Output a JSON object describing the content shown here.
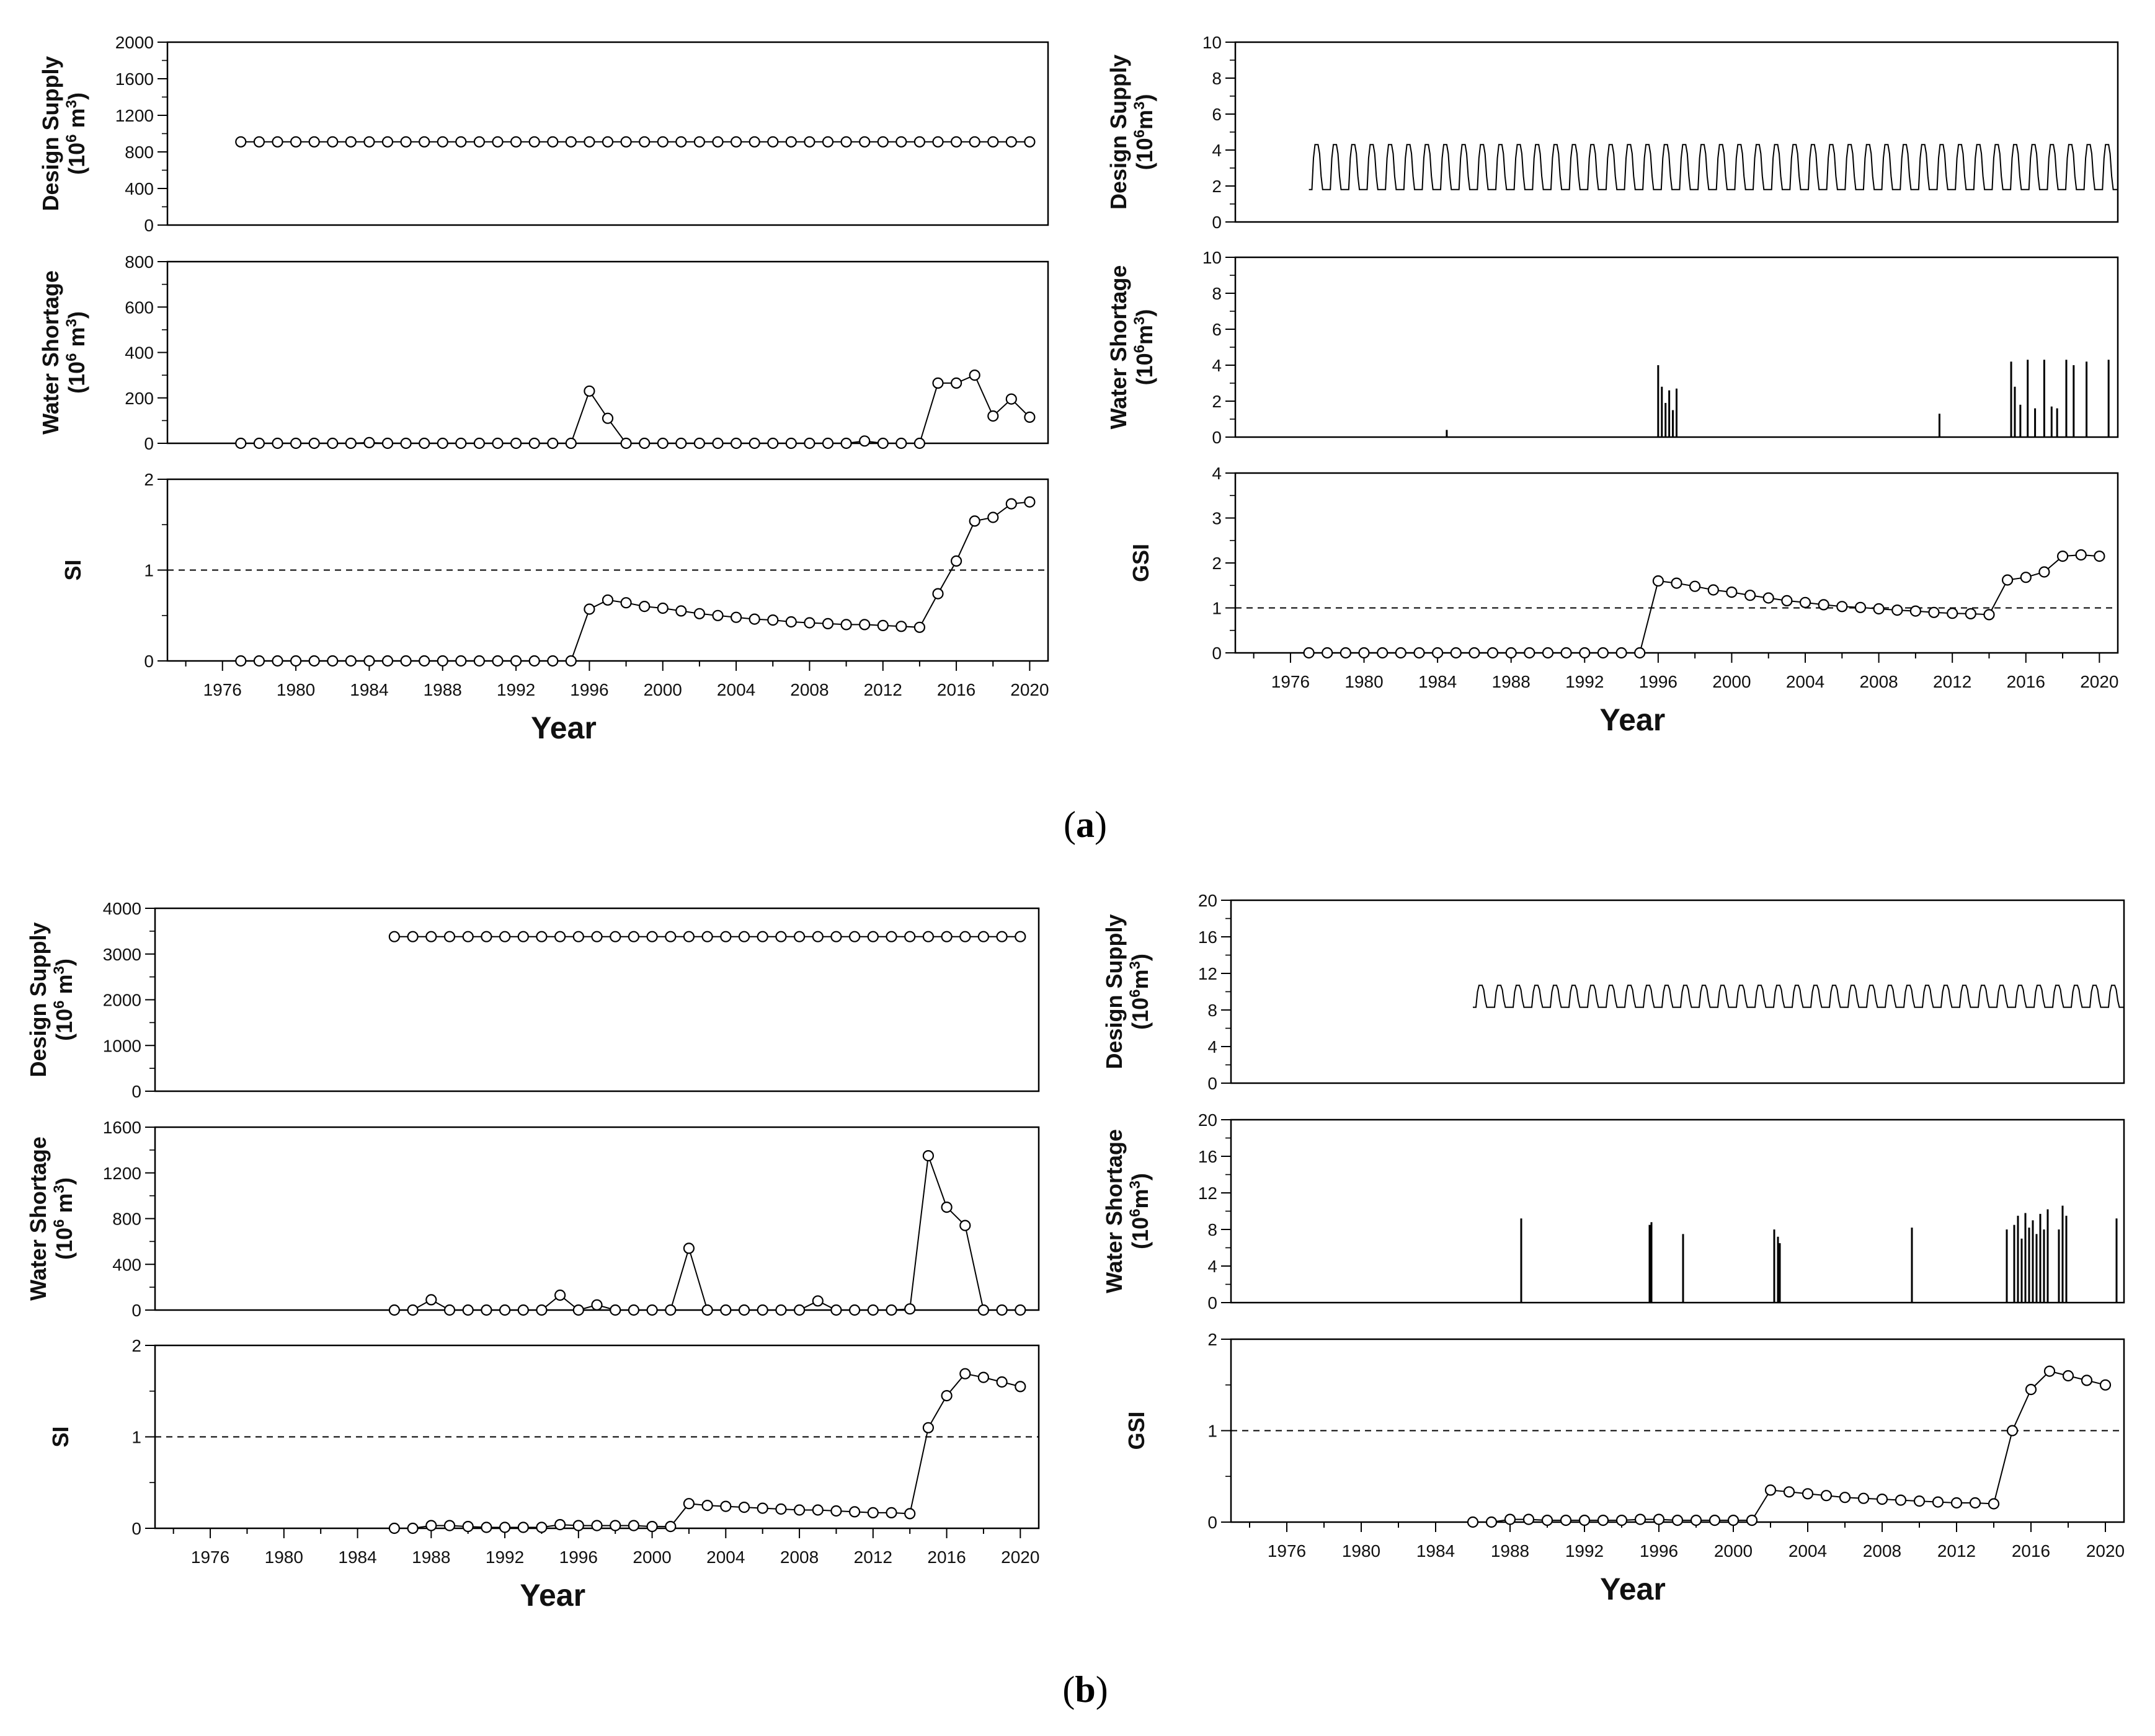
{
  "figure": {
    "caption_a": "(a)",
    "caption_a_open": "(",
    "caption_a_letter": "a",
    "caption_a_close": ")",
    "caption_b": "(b)",
    "caption_b_open": "(",
    "caption_b_letter": "b",
    "caption_b_close": ")"
  },
  "chart_data": [
    {
      "id": "a-left-design",
      "type": "line",
      "markers": "open-circle",
      "ylabel": "Design Supply (10^6 m^3)",
      "ylabel_line1": "Design Supply",
      "ylabel_line2": "(10",
      "ylabel_exp": "6",
      "ylabel_line3": " m",
      "ylabel_line4": "3",
      "ylabel_line5": ")",
      "xlim": [
        1973,
        2021
      ],
      "ylim": [
        0,
        2000
      ],
      "yticks": [
        0,
        400,
        800,
        1200,
        1600,
        2000
      ],
      "ytick_labels": [
        "0",
        "400",
        "800",
        "1200",
        "1600",
        "2000"
      ],
      "x_start": 1977,
      "x_end": 2020,
      "values": [
        910,
        910,
        910,
        910,
        910,
        910,
        910,
        910,
        910,
        910,
        910,
        910,
        910,
        910,
        910,
        910,
        910,
        910,
        910,
        910,
        910,
        910,
        910,
        910,
        910,
        910,
        910,
        910,
        910,
        910,
        910,
        910,
        910,
        910,
        910,
        910,
        910,
        910,
        910,
        910,
        910,
        910,
        910,
        910
      ]
    },
    {
      "id": "a-left-shortage",
      "type": "line",
      "markers": "open-circle",
      "ylabel": "Water Shortage (10^6 m^3)",
      "ylabel_line1": "Water Shortage",
      "ylabel_line2": "(10",
      "ylabel_exp": "6",
      "ylabel_line3": " m",
      "ylabel_line4": "3",
      "ylabel_line5": ")",
      "xlim": [
        1973,
        2021
      ],
      "ylim": [
        0,
        800
      ],
      "yticks": [
        0,
        200,
        400,
        600,
        800
      ],
      "ytick_labels": [
        "0",
        "200",
        "400",
        "600",
        "800"
      ],
      "x_start": 1977,
      "x_end": 2020,
      "values": [
        0,
        0,
        0,
        0,
        0,
        0,
        0,
        3,
        0,
        0,
        0,
        0,
        0,
        0,
        0,
        0,
        0,
        0,
        0,
        230,
        110,
        0,
        0,
        0,
        0,
        0,
        0,
        0,
        0,
        0,
        0,
        0,
        0,
        0,
        10,
        0,
        0,
        0,
        265,
        265,
        300,
        120,
        195,
        115
      ]
    },
    {
      "id": "a-left-si",
      "type": "line",
      "markers": "open-circle",
      "ylabel": "SI",
      "ylabel_line1": "SI",
      "xlim": [
        1973,
        2021
      ],
      "ylim": [
        0,
        2
      ],
      "reference_line": 1,
      "yticks": [
        0,
        1,
        2
      ],
      "ytick_labels": [
        "0",
        "1",
        "2"
      ],
      "x_start": 1977,
      "x_end": 2020,
      "xlabel": "Year",
      "xtick_labels": [
        "1976",
        "1980",
        "1984",
        "1988",
        "1992",
        "1996",
        "2000",
        "2004",
        "2008",
        "2012",
        "2016",
        "2020"
      ],
      "values": [
        0,
        0,
        0,
        0,
        0,
        0,
        0,
        0,
        0,
        0,
        0,
        0,
        0,
        0,
        0,
        0,
        0,
        0,
        0,
        0.57,
        0.67,
        0.64,
        0.6,
        0.58,
        0.55,
        0.52,
        0.5,
        0.48,
        0.46,
        0.45,
        0.43,
        0.42,
        0.41,
        0.4,
        0.4,
        0.39,
        0.38,
        0.37,
        0.74,
        1.1,
        1.54,
        1.58,
        1.73,
        1.75
      ]
    },
    {
      "id": "a-right-design",
      "type": "line",
      "markers": "none",
      "ylabel": "Design Supply (10^6m^3)",
      "ylabel_line1": "Design Supply",
      "ylabel_line2": "(10",
      "ylabel_exp": "6",
      "ylabel_line3": "m",
      "ylabel_line4": "3",
      "ylabel_line5": ")",
      "xlim": [
        1973,
        2021
      ],
      "ylim": [
        0,
        10
      ],
      "yticks": [
        0,
        2,
        4,
        6,
        8,
        10
      ],
      "ytick_labels": [
        "0",
        "2",
        "4",
        "6",
        "8",
        "10"
      ],
      "x_start": 1977,
      "x_end": 2021,
      "pattern": "monthly seasonal",
      "base_value": 1.8,
      "peak_value": 4.3
    },
    {
      "id": "a-right-shortage",
      "type": "line",
      "markers": "none",
      "ylabel": "Water Shortage (10^6m^3)",
      "ylabel_line1": "Water Shortage",
      "ylabel_line2": "(10",
      "ylabel_exp": "6",
      "ylabel_line3": "m",
      "ylabel_line4": "3",
      "ylabel_line5": ")",
      "xlim": [
        1973,
        2021
      ],
      "ylim": [
        0,
        10
      ],
      "yticks": [
        0,
        2,
        4,
        6,
        8,
        10
      ],
      "ytick_labels": [
        "0",
        "2",
        "4",
        "6",
        "8",
        "10"
      ],
      "x_start": 1977,
      "x_end": 2021,
      "spikes": [
        {
          "x": 1984.5,
          "y": 0.4
        },
        {
          "x": 1996.0,
          "y": 4.0
        },
        {
          "x": 1996.2,
          "y": 2.8
        },
        {
          "x": 1996.4,
          "y": 1.9
        },
        {
          "x": 1996.6,
          "y": 2.6
        },
        {
          "x": 1996.8,
          "y": 1.5
        },
        {
          "x": 1997.0,
          "y": 2.7
        },
        {
          "x": 2011.3,
          "y": 1.3
        },
        {
          "x": 2015.2,
          "y": 4.2
        },
        {
          "x": 2015.4,
          "y": 2.8
        },
        {
          "x": 2015.7,
          "y": 1.8
        },
        {
          "x": 2016.1,
          "y": 4.3
        },
        {
          "x": 2016.5,
          "y": 1.6
        },
        {
          "x": 2017.0,
          "y": 4.3
        },
        {
          "x": 2017.4,
          "y": 1.7
        },
        {
          "x": 2017.7,
          "y": 1.6
        },
        {
          "x": 2018.2,
          "y": 4.3
        },
        {
          "x": 2018.6,
          "y": 4.0
        },
        {
          "x": 2019.3,
          "y": 4.2
        },
        {
          "x": 2020.5,
          "y": 4.3
        }
      ]
    },
    {
      "id": "a-right-gsi",
      "type": "line",
      "markers": "open-circle",
      "ylabel": "GSI",
      "ylabel_line1": "GSI",
      "xlim": [
        1973,
        2021
      ],
      "ylim": [
        0,
        4
      ],
      "reference_line": 1,
      "yticks": [
        0,
        1,
        2,
        3,
        4
      ],
      "ytick_labels": [
        "0",
        "1",
        "2",
        "3",
        "4"
      ],
      "x_start": 1977,
      "x_end": 2020,
      "xlabel": "Year",
      "xtick_labels": [
        "1976",
        "1980",
        "1984",
        "1988",
        "1992",
        "1996",
        "2000",
        "2004",
        "2008",
        "2012",
        "2016",
        "2020"
      ],
      "values": [
        0,
        0,
        0,
        0,
        0,
        0,
        0,
        0,
        0,
        0,
        0,
        0,
        0,
        0,
        0,
        0,
        0,
        0,
        0,
        1.6,
        1.55,
        1.48,
        1.4,
        1.35,
        1.28,
        1.22,
        1.16,
        1.12,
        1.07,
        1.03,
        1.01,
        0.98,
        0.95,
        0.93,
        0.9,
        0.88,
        0.87,
        0.85,
        1.62,
        1.68,
        1.8,
        2.15,
        2.18,
        2.15
      ]
    },
    {
      "id": "b-left-design",
      "type": "line",
      "markers": "open-circle",
      "ylabel": "Design Supply (10^6 m^3)",
      "ylabel_line1": "Design Supply",
      "ylabel_line2": "(10",
      "ylabel_exp": "6",
      "ylabel_line3": " m",
      "ylabel_line4": "3",
      "ylabel_line5": ")",
      "xlim": [
        1973,
        2021
      ],
      "ylim": [
        0,
        4000
      ],
      "yticks": [
        0,
        1000,
        2000,
        3000,
        4000
      ],
      "ytick_labels": [
        "0",
        "1000",
        "2000",
        "3000",
        "4000"
      ],
      "x_start": 1986,
      "x_end": 2020,
      "values": [
        3380,
        3380,
        3380,
        3380,
        3380,
        3380,
        3380,
        3380,
        3380,
        3380,
        3380,
        3380,
        3380,
        3380,
        3380,
        3380,
        3380,
        3380,
        3380,
        3380,
        3380,
        3380,
        3380,
        3380,
        3380,
        3380,
        3380,
        3380,
        3380,
        3380,
        3380,
        3380,
        3380,
        3380,
        3380
      ]
    },
    {
      "id": "b-left-shortage",
      "type": "line",
      "markers": "open-circle",
      "ylabel": "Water Shortage (10^6 m^3)",
      "ylabel_line1": "Water Shortage",
      "ylabel_line2": "(10",
      "ylabel_exp": "6",
      "ylabel_line3": " m",
      "ylabel_line4": "3",
      "ylabel_line5": ")",
      "xlim": [
        1973,
        2021
      ],
      "ylim": [
        0,
        1600
      ],
      "yticks": [
        0,
        400,
        800,
        1200,
        1600
      ],
      "ytick_labels": [
        "0",
        "400",
        "800",
        "1200",
        "1600"
      ],
      "x_start": 1986,
      "x_end": 2020,
      "values": [
        0,
        0,
        90,
        0,
        0,
        0,
        0,
        0,
        0,
        130,
        0,
        45,
        0,
        0,
        0,
        0,
        540,
        0,
        0,
        0,
        0,
        0,
        0,
        80,
        0,
        0,
        0,
        0,
        10,
        1350,
        900,
        740,
        0,
        0,
        0
      ]
    },
    {
      "id": "b-left-si",
      "type": "line",
      "markers": "open-circle",
      "ylabel": "SI",
      "ylabel_line1": "SI",
      "xlim": [
        1973,
        2021
      ],
      "ylim": [
        0,
        2
      ],
      "reference_line": 1,
      "yticks": [
        0,
        1,
        2
      ],
      "ytick_labels": [
        "0",
        "1",
        "2"
      ],
      "x_start": 1986,
      "x_end": 2020,
      "xlabel": "Year",
      "xtick_labels": [
        "1976",
        "1980",
        "1984",
        "1988",
        "1992",
        "1996",
        "2000",
        "2004",
        "2008",
        "2012",
        "2016",
        "2020"
      ],
      "values": [
        0,
        0,
        0.03,
        0.03,
        0.02,
        0.01,
        0.01,
        0.01,
        0.01,
        0.04,
        0.03,
        0.03,
        0.03,
        0.03,
        0.02,
        0.02,
        0.27,
        0.25,
        0.24,
        0.23,
        0.22,
        0.21,
        0.2,
        0.2,
        0.19,
        0.18,
        0.17,
        0.17,
        0.16,
        1.1,
        1.45,
        1.69,
        1.65,
        1.6,
        1.55
      ]
    },
    {
      "id": "b-right-design",
      "type": "line",
      "markers": "none",
      "ylabel": "Design Supply (10^6m^3)",
      "ylabel_line1": "Design Supply",
      "ylabel_line2": "(10",
      "ylabel_exp": "6",
      "ylabel_line3": "m",
      "ylabel_line4": "3",
      "ylabel_line5": ")",
      "xlim": [
        1973,
        2021
      ],
      "ylim": [
        0,
        20
      ],
      "yticks": [
        0,
        4,
        8,
        12,
        16,
        20
      ],
      "ytick_labels": [
        "0",
        "4",
        "8",
        "12",
        "16",
        "20"
      ],
      "x_start": 1986,
      "x_end": 2021,
      "pattern": "monthly seasonal",
      "base_value": 8.3,
      "peak_value": 10.7
    },
    {
      "id": "b-right-shortage",
      "type": "line",
      "markers": "none",
      "ylabel": "Water Shortage (10^6m^3)",
      "ylabel_line1": "Water Shortage",
      "ylabel_line2": "(10",
      "ylabel_exp": "6",
      "ylabel_line3": "m",
      "ylabel_line4": "3",
      "ylabel_line5": ")",
      "xlim": [
        1973,
        2021
      ],
      "ylim": [
        0,
        20
      ],
      "yticks": [
        0,
        4,
        8,
        12,
        16,
        20
      ],
      "ytick_labels": [
        "0",
        "4",
        "8",
        "12",
        "16",
        "20"
      ],
      "x_start": 1986,
      "x_end": 2021,
      "spikes": [
        {
          "x": 1988.6,
          "y": 9.2
        },
        {
          "x": 1995.5,
          "y": 8.5
        },
        {
          "x": 1995.6,
          "y": 8.8
        },
        {
          "x": 1997.3,
          "y": 7.5
        },
        {
          "x": 2002.2,
          "y": 8.0
        },
        {
          "x": 2002.4,
          "y": 7.2
        },
        {
          "x": 2002.5,
          "y": 6.5
        },
        {
          "x": 2009.6,
          "y": 8.2
        },
        {
          "x": 2014.7,
          "y": 8.0
        },
        {
          "x": 2015.1,
          "y": 8.5
        },
        {
          "x": 2015.3,
          "y": 9.5
        },
        {
          "x": 2015.5,
          "y": 7.0
        },
        {
          "x": 2015.7,
          "y": 9.8
        },
        {
          "x": 2015.9,
          "y": 8.2
        },
        {
          "x": 2016.1,
          "y": 9.0
        },
        {
          "x": 2016.3,
          "y": 7.5
        },
        {
          "x": 2016.5,
          "y": 9.7
        },
        {
          "x": 2016.7,
          "y": 8.0
        },
        {
          "x": 2016.9,
          "y": 10.2
        },
        {
          "x": 2017.5,
          "y": 8.0
        },
        {
          "x": 2017.7,
          "y": 10.6
        },
        {
          "x": 2017.9,
          "y": 9.5
        },
        {
          "x": 2020.6,
          "y": 9.2
        }
      ]
    },
    {
      "id": "b-right-gsi",
      "type": "line",
      "markers": "open-circle",
      "ylabel": "GSI",
      "ylabel_line1": "GSI",
      "xlim": [
        1973,
        2021
      ],
      "ylim": [
        0,
        2
      ],
      "reference_line": 1,
      "yticks": [
        0,
        1,
        2
      ],
      "ytick_labels": [
        "0",
        "1",
        "2"
      ],
      "x_start": 1986,
      "x_end": 2020,
      "xlabel": "Year",
      "xtick_labels": [
        "1976",
        "1980",
        "1984",
        "1988",
        "1992",
        "1996",
        "2000",
        "2004",
        "2008",
        "2012",
        "2016",
        "2020"
      ],
      "values": [
        0,
        0,
        0.03,
        0.03,
        0.02,
        0.02,
        0.02,
        0.02,
        0.02,
        0.03,
        0.03,
        0.02,
        0.02,
        0.02,
        0.02,
        0.02,
        0.35,
        0.33,
        0.31,
        0.29,
        0.27,
        0.26,
        0.25,
        0.24,
        0.23,
        0.22,
        0.21,
        0.21,
        0.2,
        1.0,
        1.45,
        1.65,
        1.6,
        1.55,
        1.5
      ]
    }
  ]
}
